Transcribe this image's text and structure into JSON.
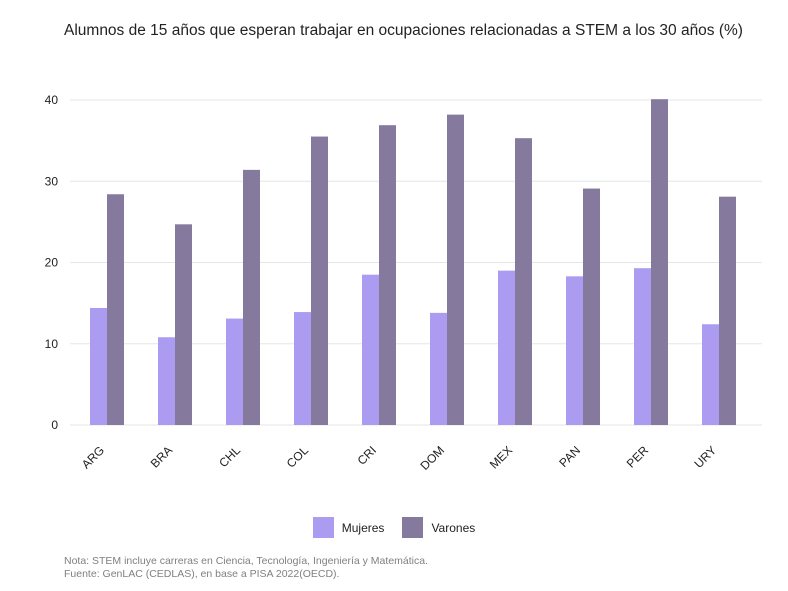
{
  "chart_data": {
    "type": "bar",
    "title": "Alumnos de 15 años que esperan trabajar en ocupaciones relacionadas a STEM a los 30 años (%)",
    "xlabel": "",
    "ylabel": "",
    "categories": [
      "ARG",
      "BRA",
      "CHL",
      "COL",
      "CRI",
      "DOM",
      "MEX",
      "PAN",
      "PER",
      "URY"
    ],
    "series": [
      {
        "name": "Mujeres",
        "color": "#ab9cf2",
        "values": [
          14.4,
          10.8,
          13.1,
          13.9,
          18.5,
          13.8,
          19.0,
          18.3,
          19.3,
          12.4
        ]
      },
      {
        "name": "Varones",
        "color": "#857a9d",
        "values": [
          28.4,
          24.7,
          31.4,
          35.5,
          36.9,
          38.2,
          35.3,
          29.1,
          40.1,
          28.1
        ]
      }
    ],
    "ylim": [
      0,
      41
    ],
    "yticks": [
      0,
      10,
      20,
      30,
      40
    ],
    "grid": true,
    "legend_position": "bottom",
    "notes": [
      "Nota: STEM incluye carreras en Ciencia, Tecnología, Ingeniería y Matemática.",
      "Fuente: GenLAC (CEDLAS), en base a PISA 2022(OECD)."
    ]
  }
}
